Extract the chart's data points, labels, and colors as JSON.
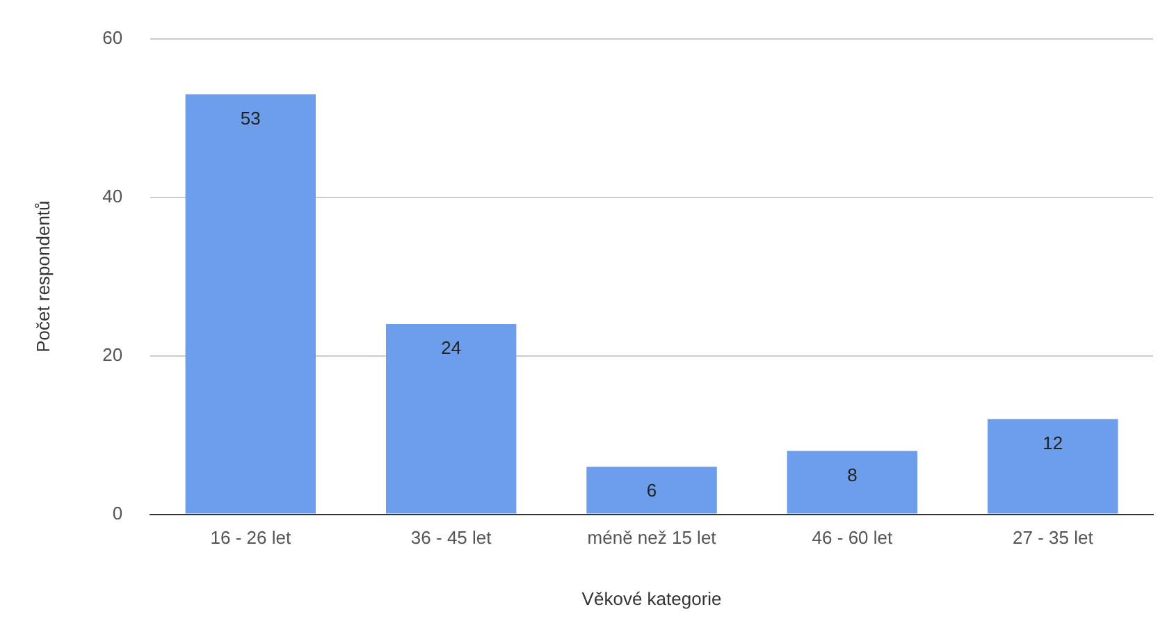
{
  "chart_data": {
    "type": "bar",
    "xlabel": "Věkové kategorie",
    "ylabel": "Počet respondentů",
    "categories": [
      "16 - 26 let",
      "36 - 45 let",
      "méně než 15 let",
      "46 - 60 let",
      "27 - 35 let"
    ],
    "values": [
      53,
      24,
      6,
      8,
      12
    ],
    "color": "#6d9eeb",
    "ylim": [
      0,
      60
    ],
    "yticks": [
      0,
      20,
      40,
      60
    ],
    "grid": "y",
    "legend": false,
    "data_labels": true
  }
}
